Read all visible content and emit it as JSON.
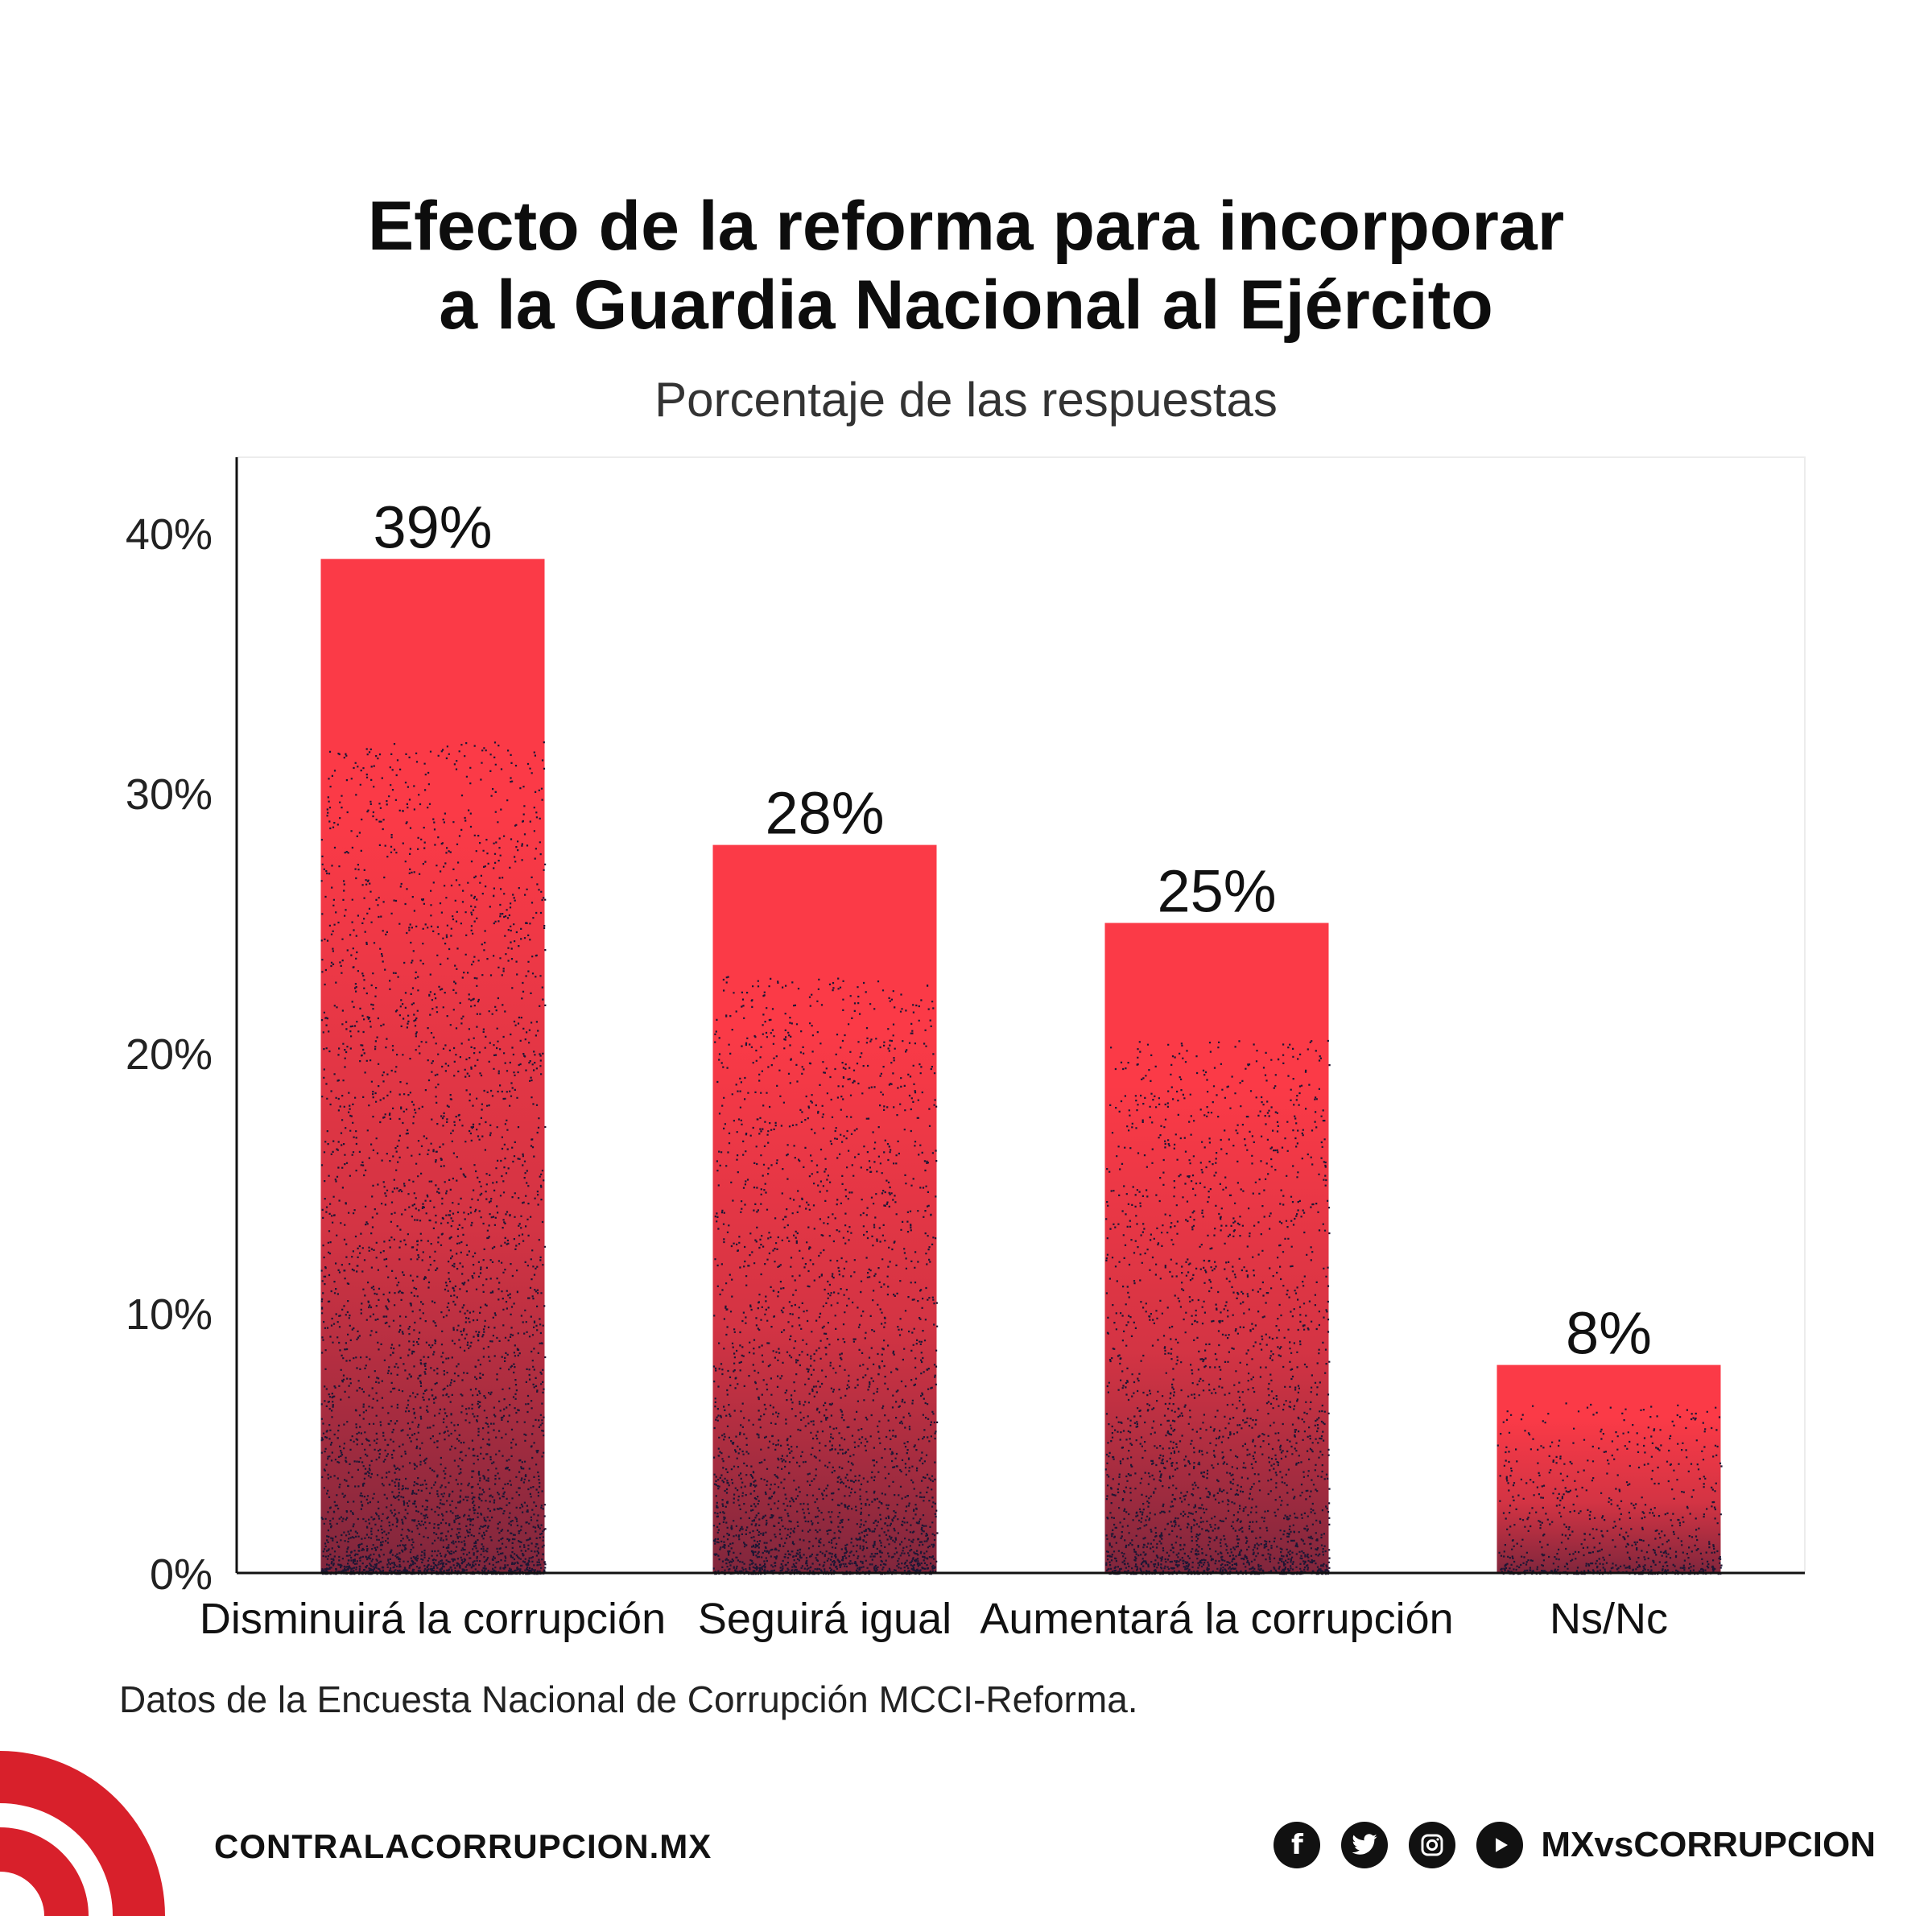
{
  "title_lines": [
    "Efecto de la reforma para incorporar",
    "a la Guardia Nacional al Ejército"
  ],
  "subtitle": "Porcentaje de las respuestas",
  "chart_data": {
    "type": "bar",
    "categories": [
      "Disminuirá la corrupción",
      "Seguirá igual",
      "Aumentará la corrupción",
      "Ns/Nc"
    ],
    "values": [
      39,
      28,
      25,
      8
    ],
    "data_labels": [
      "39%",
      "28%",
      "25%",
      "8%"
    ],
    "yticks": [
      0,
      10,
      20,
      30,
      40
    ],
    "ytick_labels": [
      "0%",
      "10%",
      "20%",
      "30%",
      "40%"
    ],
    "ylim": [
      0,
      43
    ],
    "xlabel": "",
    "ylabel": "",
    "grid": false,
    "bar_color": "#fb3a47",
    "speckle_color": "#1c1634"
  },
  "source_note": "Datos de la Encuesta Nacional de Corrupción MCCI-Reforma.",
  "footer": {
    "website": "CONTRALACORRUPCION.MX",
    "social_handle": "MXvsCORRUPCION",
    "social_icons": [
      "facebook-icon",
      "twitter-icon",
      "instagram-icon",
      "youtube-icon"
    ],
    "brand_color": "#d8202b"
  }
}
